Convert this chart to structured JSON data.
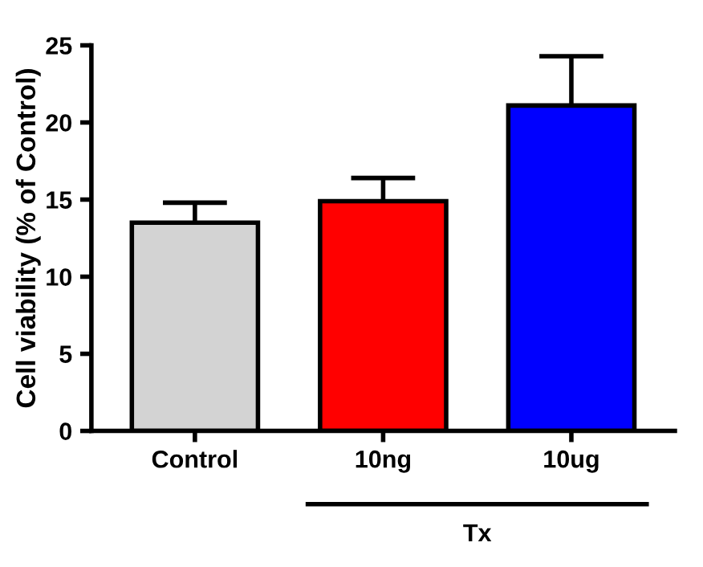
{
  "chart_data": {
    "type": "bar",
    "ylabel": "Cell viability (% of Control)",
    "categories": [
      "Control",
      "10ng",
      "10ug"
    ],
    "values": [
      13.5,
      14.9,
      21.1
    ],
    "colors": [
      "#d3d3d3",
      "#ff0000",
      "#0000ff"
    ],
    "errors": [
      1.3,
      1.5,
      3.2
    ],
    "ylim": [
      0,
      25
    ],
    "yticks": [
      0,
      5,
      10,
      15,
      20,
      25
    ],
    "annotations": [
      "Tx"
    ],
    "grid": false,
    "legend": false
  }
}
